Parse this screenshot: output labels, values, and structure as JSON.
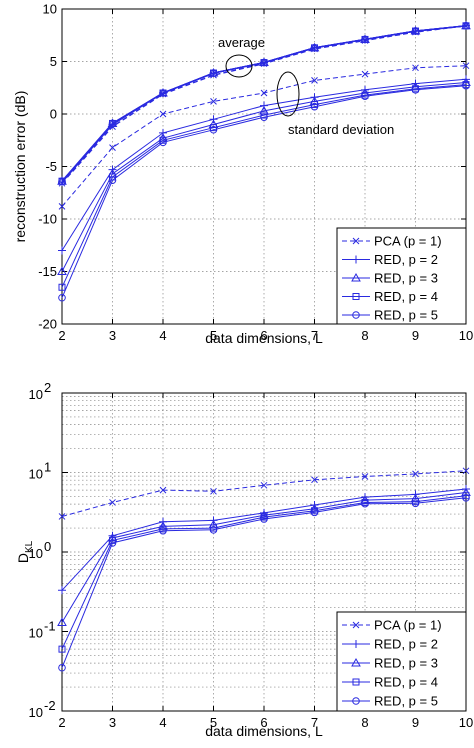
{
  "colors": {
    "series": "#2a2ae0",
    "text": "#000000"
  },
  "chart_data": [
    {
      "type": "line",
      "xlabel": "data dimensions, L",
      "ylabel": "reconstruction error (dB)",
      "xlim": [
        2,
        10
      ],
      "ylim": [
        -20,
        10
      ],
      "x_ticks": [
        "2",
        "3",
        "4",
        "5",
        "6",
        "7",
        "8",
        "9",
        "10"
      ],
      "y_ticks": [
        "-20",
        "-15",
        "-10",
        "-5",
        "0",
        "5",
        "10"
      ],
      "grid": true,
      "legend_position": "lower-right",
      "annotations": [
        "average",
        "standard deviation"
      ],
      "x": [
        2,
        3,
        4,
        5,
        6,
        7,
        8,
        9,
        10
      ],
      "series": [
        {
          "name": "PCA (p = 1)",
          "marker": "x",
          "dash": true,
          "group": "std",
          "values": [
            -8.8,
            -3.2,
            0.0,
            1.2,
            2.0,
            3.2,
            3.8,
            4.4,
            4.6
          ]
        },
        {
          "name": "PCA (p = 1)",
          "marker": "x",
          "dash": true,
          "group": "avg",
          "values": [
            -6.6,
            -1.2,
            1.9,
            3.7,
            4.8,
            6.2,
            7.0,
            7.8,
            8.4
          ]
        },
        {
          "name": "RED, p = 2",
          "marker": "+",
          "dash": false,
          "group": "std",
          "values": [
            -13.0,
            -5.3,
            -1.8,
            -0.5,
            0.8,
            1.6,
            2.3,
            2.9,
            3.3
          ]
        },
        {
          "name": "RED, p = 2",
          "marker": "+",
          "dash": false,
          "group": "avg",
          "values": [
            -6.5,
            -1.0,
            2.0,
            3.9,
            4.9,
            6.3,
            7.1,
            7.9,
            8.4
          ]
        },
        {
          "name": "RED, p = 3",
          "marker": "triangle",
          "dash": false,
          "group": "std",
          "values": [
            -15.0,
            -5.7,
            -2.3,
            -1.0,
            0.3,
            1.2,
            2.0,
            2.6,
            3.0
          ]
        },
        {
          "name": "RED, p = 3",
          "marker": "triangle",
          "dash": false,
          "group": "avg",
          "values": [
            -6.4,
            -0.9,
            2.0,
            3.9,
            4.9,
            6.3,
            7.1,
            7.9,
            8.4
          ]
        },
        {
          "name": "RED, p = 4",
          "marker": "square",
          "dash": false,
          "group": "std",
          "values": [
            -16.5,
            -6.0,
            -2.5,
            -1.3,
            -0.1,
            0.9,
            1.8,
            2.4,
            2.8
          ]
        },
        {
          "name": "RED, p = 4",
          "marker": "square",
          "dash": false,
          "group": "avg",
          "values": [
            -6.4,
            -0.9,
            2.0,
            3.9,
            4.9,
            6.3,
            7.1,
            7.9,
            8.4
          ]
        },
        {
          "name": "RED, p = 5",
          "marker": "circle",
          "dash": false,
          "group": "std",
          "values": [
            -17.5,
            -6.3,
            -2.7,
            -1.5,
            -0.3,
            0.7,
            1.7,
            2.3,
            2.7
          ]
        },
        {
          "name": "RED, p = 5",
          "marker": "circle",
          "dash": false,
          "group": "avg",
          "values": [
            -6.4,
            -0.9,
            2.0,
            3.9,
            4.9,
            6.3,
            7.1,
            7.9,
            8.4
          ]
        }
      ],
      "legend": [
        "PCA (p = 1)",
        "RED, p = 2",
        "RED, p = 3",
        "RED, p = 4",
        "RED, p = 5"
      ]
    },
    {
      "type": "line",
      "xlabel": "data dimensions, L",
      "ylabel_main": "D",
      "ylabel_sub": "KL",
      "xlim": [
        2,
        10
      ],
      "ylim": [
        0.01,
        100
      ],
      "y_scale": "log",
      "x_ticks": [
        "2",
        "3",
        "4",
        "5",
        "6",
        "7",
        "8",
        "9",
        "10"
      ],
      "y_ticks": [
        {
          "base": "10",
          "exp": "-2"
        },
        {
          "base": "10",
          "exp": "-1"
        },
        {
          "base": "10",
          "exp": "0"
        },
        {
          "base": "10",
          "exp": "1"
        },
        {
          "base": "10",
          "exp": "2"
        }
      ],
      "grid": true,
      "legend_position": "lower-right",
      "x": [
        2,
        3,
        4,
        5,
        6,
        7,
        8,
        9,
        10
      ],
      "series": [
        {
          "name": "PCA (p = 1)",
          "marker": "x",
          "dash": true,
          "values": [
            2.8,
            4.2,
            6.0,
            5.8,
            6.9,
            8.1,
            8.9,
            9.6,
            10.5
          ]
        },
        {
          "name": "RED, p = 2",
          "marker": "+",
          "dash": false,
          "values": [
            0.33,
            1.6,
            2.4,
            2.5,
            3.1,
            3.9,
            4.9,
            5.3,
            6.2
          ]
        },
        {
          "name": "RED, p = 3",
          "marker": "triangle",
          "dash": false,
          "values": [
            0.13,
            1.5,
            2.1,
            2.2,
            2.9,
            3.5,
            4.5,
            4.7,
            5.6
          ]
        },
        {
          "name": "RED, p = 4",
          "marker": "square",
          "dash": false,
          "values": [
            0.06,
            1.4,
            1.95,
            2.0,
            2.75,
            3.3,
            4.2,
            4.3,
            5.1
          ]
        },
        {
          "name": "RED, p = 5",
          "marker": "circle",
          "dash": false,
          "values": [
            0.035,
            1.3,
            1.85,
            1.9,
            2.6,
            3.15,
            4.05,
            4.1,
            4.8
          ]
        }
      ],
      "legend": [
        "PCA (p = 1)",
        "RED, p = 2",
        "RED, p = 3",
        "RED, p = 4",
        "RED, p = 5"
      ]
    }
  ]
}
